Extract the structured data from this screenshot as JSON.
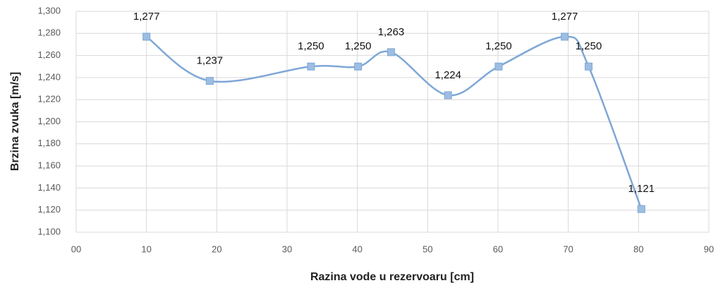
{
  "chart_data": {
    "type": "line",
    "xlabel": "Razina vode u rezervoaru [cm]",
    "ylabel": "Brzina zvuka [m/s]",
    "x": [
      10,
      19,
      33.4,
      40.1,
      44.8,
      52.9,
      60.1,
      69.5,
      72.9,
      80.4
    ],
    "series": [
      {
        "name": "Brzina zvuka",
        "color": "#7ea7d6",
        "values": [
          1277,
          1237,
          1250,
          1250,
          1263,
          1224,
          1250,
          1277,
          1250,
          1121
        ],
        "value_labels": [
          "1,277",
          "1,237",
          "1,250",
          "1,250",
          "1,263",
          "1,224",
          "1,250",
          "1,277",
          "1,250",
          "1,121"
        ]
      }
    ],
    "xlim": [
      0,
      90
    ],
    "xticks": [
      {
        "value": 0,
        "label": "00"
      },
      10,
      20,
      30,
      40,
      50,
      60,
      70,
      80,
      90
    ],
    "ylim": [
      1100,
      1300
    ],
    "yticks": [
      {
        "value": 1100,
        "label": "1,100"
      },
      {
        "value": 1120,
        "label": "1,120"
      },
      {
        "value": 1140,
        "label": "1,140"
      },
      {
        "value": 1160,
        "label": "1,160"
      },
      {
        "value": 1180,
        "label": "1,180"
      },
      {
        "value": 1200,
        "label": "1,200"
      },
      {
        "value": 1220,
        "label": "1,220"
      },
      {
        "value": 1240,
        "label": "1,240"
      },
      {
        "value": 1260,
        "label": "1,260"
      },
      {
        "value": 1280,
        "label": "1,280"
      },
      {
        "value": 1300,
        "label": "1,300"
      }
    ],
    "grid": true,
    "smooth": true
  }
}
